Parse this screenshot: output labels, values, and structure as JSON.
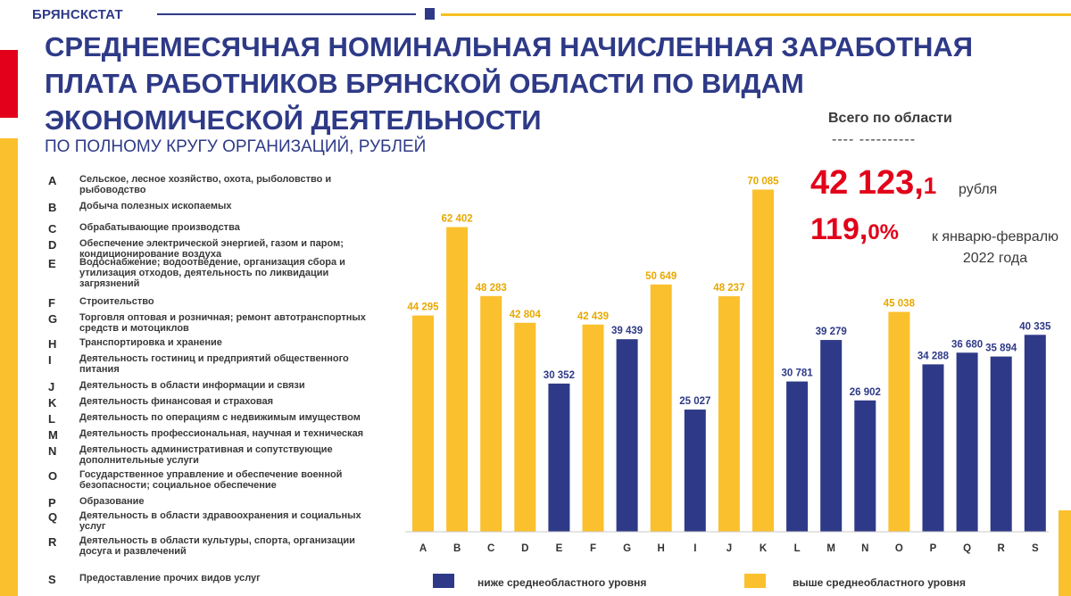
{
  "header": {
    "brand": "БРЯНСКСТАТ"
  },
  "title": "СРЕДНЕМЕСЯЧНАЯ НОМИНАЛЬНАЯ НАЧИСЛЕННАЯ  ЗАРАБОТНАЯ ПЛАТА РАБОТНИКОВ БРЯНСКОЙ ОБЛАСТИ ПО ВИДАМ ЭКОНОМИЧЕСКОЙ ДЕЯТЕЛЬНОСТИ",
  "subtitle": "ПО ПОЛНОМУ КРУГУ ОРГАНИЗАЦИЙ, РУБЛЕЙ",
  "activities": [
    {
      "code": "A",
      "desc": "Сельское, лесное хозяйство, охота, рыболовство и рыбоводство"
    },
    {
      "code": "B",
      "desc": "Добыча полезных ископаемых"
    },
    {
      "code": "C",
      "desc": "Обрабатывающие производства"
    },
    {
      "code": "D",
      "desc": "Обеспечение электрической энергией, газом и паром; кондиционирование воздуха"
    },
    {
      "code": "E",
      "desc": "Водоснабжение; водоотведение, организация сбора и утилизация отходов, деятельность по ликвидации загрязнений"
    },
    {
      "code": "F",
      "desc": "Строительство"
    },
    {
      "code": "G",
      "desc": "Торговля оптовая и розничная; ремонт автотранспортных средств и мотоциклов"
    },
    {
      "code": "H",
      "desc": "Транспортировка и хранение"
    },
    {
      "code": "I",
      "desc": "Деятельность гостиниц и предприятий общественного питания"
    },
    {
      "code": "J",
      "desc": "Деятельность в области информации и связи"
    },
    {
      "code": "K",
      "desc": "Деятельность финансовая и страховая"
    },
    {
      "code": "L",
      "desc": "Деятельность по операциям с недвижимым имуществом"
    },
    {
      "code": "M",
      "desc": "Деятельность профессиональная, научная и техническая"
    },
    {
      "code": "N",
      "desc": "Деятельность административная и сопутствующие дополнительные услуги"
    },
    {
      "code": "O",
      "desc": "Государственное управление и обеспечение военной безопасности; социальное обеспечение"
    },
    {
      "code": "P",
      "desc": "Образование"
    },
    {
      "code": "Q",
      "desc": "Деятельность в области здравоохранения и социальных услуг"
    },
    {
      "code": "R",
      "desc": "Деятельность в области культуры, спорта, организации досуга и развлечений"
    },
    {
      "code": "S",
      "desc": "Предоставление прочих видов услуг"
    }
  ],
  "total": {
    "heading": "Всего по области",
    "dashes": "---- ----------",
    "value_main": "42 123,",
    "value_dec": "1",
    "unit": "рубля",
    "pct_main": "119,",
    "pct_dec": "0%",
    "comparison": "к январю-февралю 2022 года"
  },
  "colors": {
    "below": "#2e3a87",
    "above": "#fbc02d",
    "accent_red": "#e2001a"
  },
  "chart_data": {
    "type": "bar",
    "categories": [
      "A",
      "B",
      "C",
      "D",
      "E",
      "F",
      "G",
      "H",
      "I",
      "J",
      "K",
      "L",
      "M",
      "N",
      "O",
      "P",
      "Q",
      "R",
      "S"
    ],
    "values": [
      44295,
      62402,
      48283,
      42804,
      30352,
      42439,
      39439,
      50649,
      25027,
      48237,
      70085,
      30781,
      39279,
      26902,
      45038,
      34288,
      36680,
      35894,
      40335
    ],
    "labels": [
      "44 295",
      "62 402",
      "48 283",
      "42 804",
      "30 352",
      "42 439",
      "39 439",
      "50 649",
      "25 027",
      "48 237",
      "70 085",
      "30 781",
      "39 279",
      "26 902",
      "45 038",
      "34 288",
      "36 680",
      "35 894",
      "40 335"
    ],
    "group": [
      "above",
      "above",
      "above",
      "above",
      "below",
      "above",
      "below",
      "above",
      "below",
      "above",
      "above",
      "below",
      "below",
      "below",
      "above",
      "below",
      "below",
      "below",
      "below"
    ],
    "series": [
      {
        "name": "ниже среднеобластного уровня",
        "key": "below"
      },
      {
        "name": "выше среднеобластного уровня",
        "key": "above"
      }
    ],
    "reference_average": 42123.1,
    "ylim": [
      0,
      72000
    ],
    "legend_position": "bottom"
  }
}
